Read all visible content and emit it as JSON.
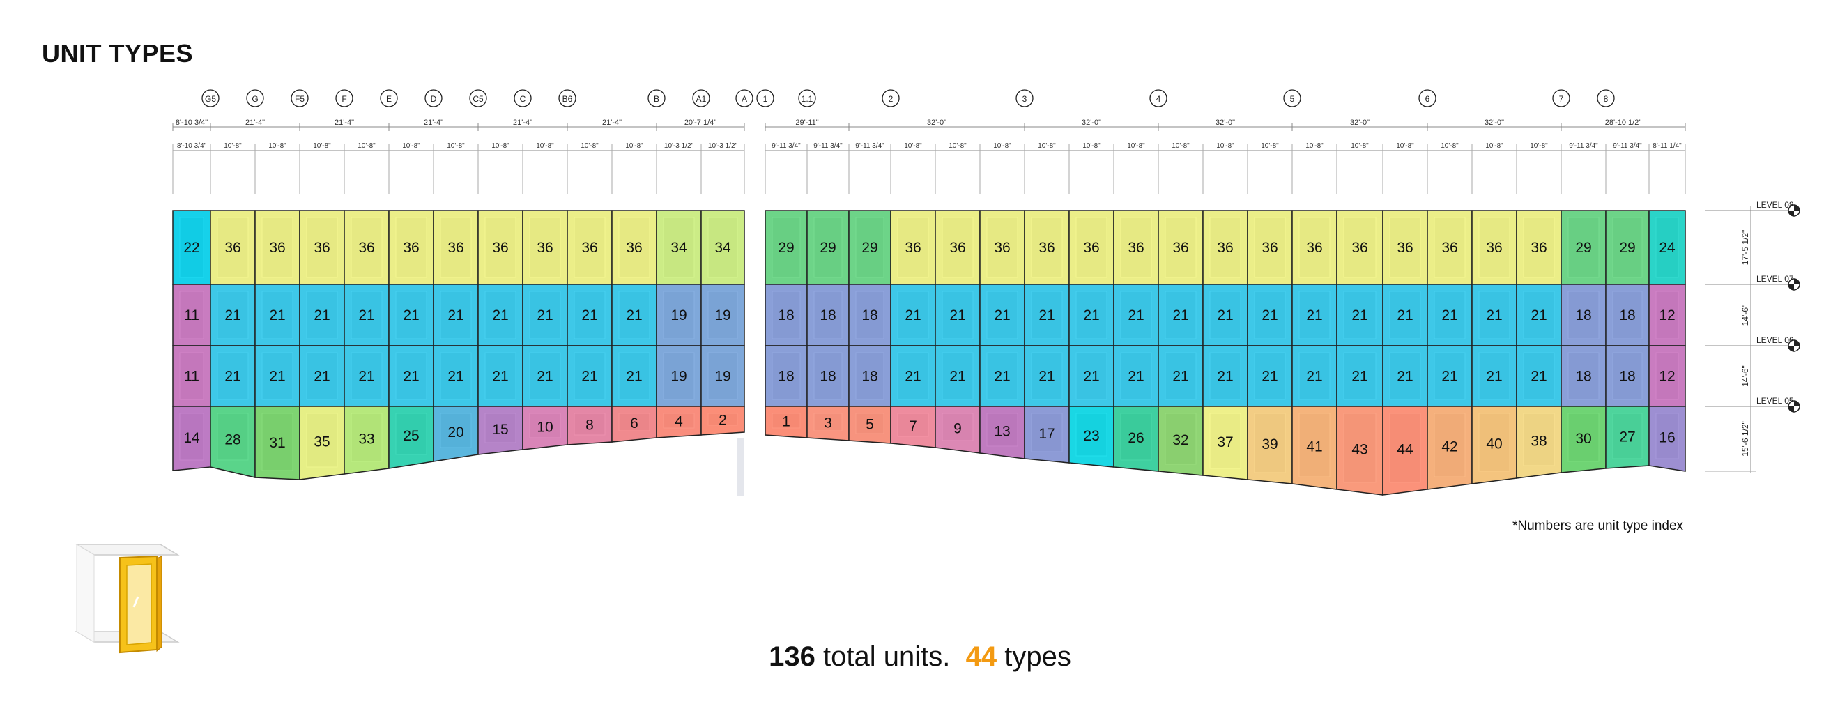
{
  "title": "UNIT TYPES",
  "note": "*Numbers are unit type index",
  "summary": {
    "units_count": "136",
    "units_label": "total units.",
    "types_count": "44",
    "types_label": "types"
  },
  "colors": {
    "accent": "#f39a12"
  },
  "left_grid": {
    "labels": [
      "G5",
      "G",
      "F5",
      "F",
      "E",
      "D",
      "C5",
      "C",
      "B6",
      "B",
      "A1",
      "A"
    ],
    "dims_top": [
      "8'-10 3/4\"",
      "21'-4\"",
      "21'-4\"",
      "21'-4\"",
      "21'-4\"",
      "21'-4\"",
      "20'-7 1/4\""
    ],
    "dims_bottom": [
      "8'-10 3/4\"",
      "10'-8\"",
      "10'-8\"",
      "10'-8\"",
      "10'-8\"",
      "10'-8\"",
      "10'-8\"",
      "10'-8\"",
      "10'-8\"",
      "10'-8\"",
      "10'-8\"",
      "10'-3 1/2\"",
      "10'-3 1/2\""
    ]
  },
  "right_grid": {
    "labels": [
      "1",
      "1.1",
      "2",
      "3",
      "4",
      "5",
      "6",
      "7",
      "8"
    ],
    "dims_top": [
      "29'-11\"",
      "32'-0\"",
      "32'-0\"",
      "32'-0\"",
      "32'-0\"",
      "32'-0\"",
      "28'-10 1/2\""
    ],
    "dims_bottom": [
      "9'-11 3/4\"",
      "9'-11 3/4\"",
      "9'-11 3/4\"",
      "10'-8\"",
      "10'-8\"",
      "10'-8\"",
      "10'-8\"",
      "10'-8\"",
      "10'-8\"",
      "10'-8\"",
      "10'-8\"",
      "10'-8\"",
      "10'-8\"",
      "10'-8\"",
      "10'-8\"",
      "10'-8\"",
      "10'-8\"",
      "10'-8\"",
      "9'-11 3/4\"",
      "9'-11 3/4\"",
      "8'-11 1/4\""
    ]
  },
  "levels": [
    {
      "name": "LEVEL 08",
      "height": "17'-5 1/2\""
    },
    {
      "name": "LEVEL 07",
      "height": "14'-6\""
    },
    {
      "name": "LEVEL 06",
      "height": "14'-6\""
    },
    {
      "name": "LEVEL 05",
      "height": "15'-6 1/2\""
    }
  ],
  "left_units": [
    [
      "22",
      "36",
      "36",
      "36",
      "36",
      "36",
      "36",
      "36",
      "36",
      "36",
      "36",
      "34",
      "34"
    ],
    [
      "11",
      "21",
      "21",
      "21",
      "21",
      "21",
      "21",
      "21",
      "21",
      "21",
      "21",
      "19",
      "19"
    ],
    [
      "11",
      "21",
      "21",
      "21",
      "21",
      "21",
      "21",
      "21",
      "21",
      "21",
      "21",
      "19",
      "19"
    ],
    [
      "14",
      "28",
      "31",
      "35",
      "33",
      "25",
      "20",
      "15",
      "10",
      "8",
      "6",
      "4",
      "2"
    ]
  ],
  "right_units": [
    [
      "29",
      "29",
      "29",
      "36",
      "36",
      "36",
      "36",
      "36",
      "36",
      "36",
      "36",
      "36",
      "36",
      "36",
      "36",
      "36",
      "36",
      "36",
      "29",
      "29",
      "24"
    ],
    [
      "18",
      "18",
      "18",
      "21",
      "21",
      "21",
      "21",
      "21",
      "21",
      "21",
      "21",
      "21",
      "21",
      "21",
      "21",
      "21",
      "21",
      "21",
      "18",
      "18",
      "12"
    ],
    [
      "18",
      "18",
      "18",
      "21",
      "21",
      "21",
      "21",
      "21",
      "21",
      "21",
      "21",
      "21",
      "21",
      "21",
      "21",
      "21",
      "21",
      "21",
      "18",
      "18",
      "12"
    ],
    [
      "1",
      "3",
      "5",
      "7",
      "9",
      "13",
      "17",
      "23",
      "26",
      "32",
      "37",
      "39",
      "41",
      "43",
      "44",
      "42",
      "40",
      "38",
      "30",
      "27",
      "16"
    ]
  ],
  "type_colors": {
    "1": "#fb8e78",
    "2": "#fb8e78",
    "3": "#f99580",
    "4": "#f98d7d",
    "5": "#f7937e",
    "6": "#f08a8e",
    "7": "#ee8c9e",
    "8": "#e487a6",
    "9": "#dc88b4",
    "10": "#d985b8",
    "11": "#c97cc0",
    "12": "#c97cc0",
    "13": "#c07cc0",
    "14": "#bd7bc4",
    "15": "#b584c8",
    "16": "#9d8fd2",
    "17": "#8d9bd6",
    "18": "#8a9fd8",
    "19": "#7fa8da",
    "20": "#5ab6de",
    "21": "#3ec8e8",
    "22": "#16d1ea",
    "23": "#1ad7e4",
    "24": "#2bd4c8",
    "25": "#37d2b2",
    "26": "#3fd0a0",
    "27": "#4ed49c",
    "28": "#5ad48a",
    "29": "#6dd488",
    "30": "#6fd474",
    "31": "#7ed472",
    "32": "#8fd474",
    "33": "#b6e87c",
    "34": "#ccec86",
    "35": "#e6ef86",
    "36": "#ebee88",
    "37": "#eef08a",
    "38": "#f2d888",
    "39": "#f3cd84",
    "40": "#f4c47e",
    "41": "#f5b47c",
    "42": "#f5b07c",
    "43": "#f99a7c",
    "44": "#fb927a"
  }
}
